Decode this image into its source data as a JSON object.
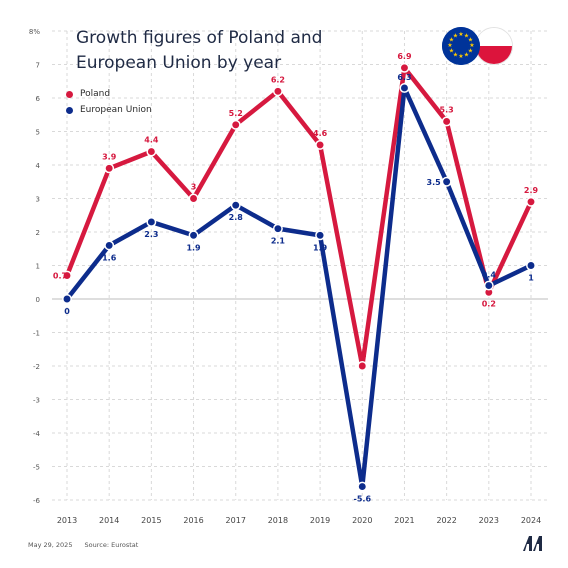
{
  "title_line1": "Growth figures of Poland and",
  "title_line2": "European Union by year",
  "legend": [
    {
      "label": "Poland",
      "color": "#d6193f"
    },
    {
      "label": "European Union",
      "color": "#0d2c8c"
    }
  ],
  "footer": {
    "date": "May 29, 2025",
    "source": "Source: Eurostat"
  },
  "logo": "aa-logo-icon",
  "flags": [
    "eu-flag-icon",
    "poland-flag-icon"
  ],
  "chart_data": {
    "type": "line",
    "x": [
      "2013",
      "2014",
      "2015",
      "2016",
      "2017",
      "2018",
      "2019",
      "2020",
      "2021",
      "2022",
      "2023",
      "2024"
    ],
    "ylim": [
      -6,
      8
    ],
    "yticks": [
      "-6",
      "-5",
      "-4",
      "-3",
      "-2",
      "-1",
      "0",
      "1",
      "2",
      "3",
      "4",
      "5",
      "6",
      "7",
      "8%"
    ],
    "grid": true,
    "legend_position": "top-left",
    "series": [
      {
        "name": "Poland",
        "color": "#d6193f",
        "values": [
          0.7,
          3.9,
          4.4,
          3,
          5.2,
          6.2,
          4.6,
          -2,
          6.9,
          5.3,
          0.2,
          2.9
        ],
        "labels": [
          "0.7",
          "3.9",
          "4.4",
          "3",
          "5.2",
          "6.2",
          "4.6",
          "-2",
          "6.9",
          "5.3",
          "0.2",
          "2.9"
        ]
      },
      {
        "name": "European Union",
        "color": "#0d2c8c",
        "values": [
          0,
          1.6,
          2.3,
          1.9,
          2.8,
          2.1,
          1.9,
          -5.6,
          6.3,
          3.5,
          0.4,
          1
        ],
        "labels": [
          "0",
          "1.6",
          "2.3",
          "1.9",
          "2.8",
          "2.1",
          "1.9",
          "-5.6",
          "6.3",
          "3.5",
          "0.4",
          "1"
        ]
      }
    ]
  }
}
